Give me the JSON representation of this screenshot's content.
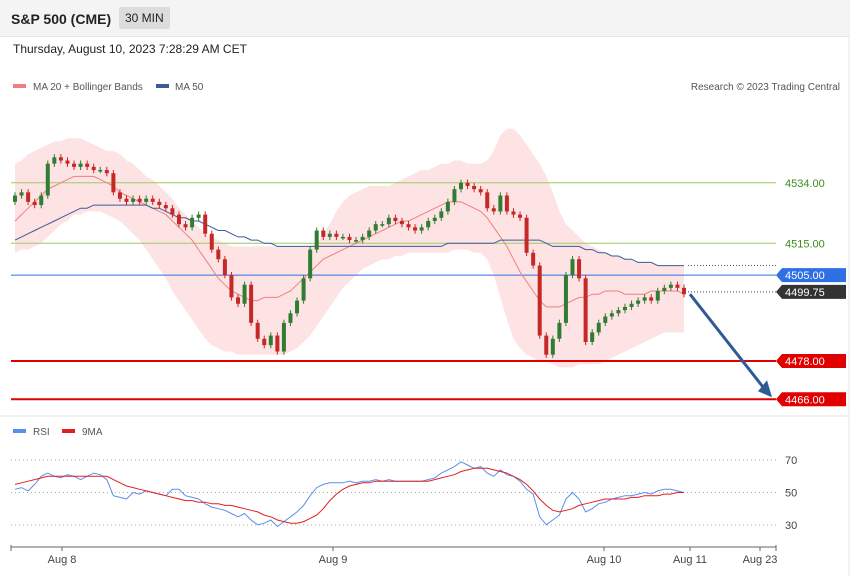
{
  "header": {
    "instrument": "S&P 500 (CME)",
    "timeframe": "30 MIN",
    "datetime": "Thursday, August 10, 2023 7:28:29 AM CET"
  },
  "legend": {
    "ma20_label": "MA 20 + Bollinger Bands",
    "ma50_label": "MA 50",
    "credit": "Research © 2023 Trading Central",
    "rsi_label": "RSI",
    "rsi_ma_label": "9MA"
  },
  "colors": {
    "bull": "#2e7d32",
    "bear": "#c62828",
    "ma20": "#f08080",
    "band": "#fde3e3",
    "ma50": "#3d5a99",
    "resistance_green": "#9ccc65",
    "pivot_blue": "#2f6fe4",
    "support_red": "#e00000",
    "forecast_arrow": "#2e5b94",
    "rsi": "#5b8def",
    "rsi_ma": "#e02020"
  },
  "chart_data": [
    {
      "type": "candlestick",
      "x_axis_labels": [
        "Aug 8",
        "Aug 9",
        "Aug 10",
        "Aug 11",
        "Aug 23"
      ],
      "y_range": [
        4462,
        4560
      ],
      "levels": [
        {
          "label": "4534.00",
          "value": 4534.0,
          "style": "resistance"
        },
        {
          "label": "4515.00",
          "value": 4515.0,
          "style": "resistance"
        },
        {
          "label": "4505.00",
          "value": 4505.0,
          "style": "pivot"
        },
        {
          "label": "4499.75",
          "value": 4499.75,
          "style": "last"
        },
        {
          "label": "4478.00",
          "value": 4478.0,
          "style": "support"
        },
        {
          "label": "4466.00",
          "value": 4466.0,
          "style": "support"
        }
      ],
      "forecast": {
        "from": 4499,
        "to": 4466
      },
      "closes": [
        4530,
        4531,
        4528,
        4527,
        4530,
        4540,
        4542,
        4541,
        4540,
        4539,
        4540,
        4539,
        4538,
        4538,
        4537,
        4531,
        4529,
        4528,
        4529,
        4528,
        4529,
        4528,
        4527,
        4526,
        4524,
        4521,
        4520,
        4523,
        4524,
        4518,
        4513,
        4510,
        4505,
        4498,
        4496,
        4502,
        4490,
        4485,
        4483,
        4486,
        4481,
        4490,
        4493,
        4497,
        4504,
        4513,
        4519,
        4517,
        4518,
        4517,
        4517,
        4516,
        4516,
        4517,
        4519,
        4521,
        4521,
        4523,
        4522,
        4521,
        4520,
        4519,
        4520,
        4522,
        4523,
        4525,
        4528,
        4532,
        4534,
        4533,
        4532,
        4531,
        4526,
        4525,
        4530,
        4525,
        4524,
        4523,
        4512,
        4508,
        4486,
        4480,
        4485,
        4490,
        4505,
        4510,
        4504,
        4484,
        4487,
        4490,
        4492,
        4493,
        4494,
        4495,
        4496,
        4497,
        4498,
        4497,
        4500,
        4501,
        4502,
        4501,
        4499
      ],
      "ma20": [
        4522,
        4524,
        4526,
        4528,
        4530,
        4532,
        4533,
        4534,
        4535,
        4536,
        4536,
        4536,
        4536,
        4535,
        4534,
        4533,
        4531,
        4530,
        4529,
        4528,
        4527,
        4526,
        4525,
        4524,
        4522,
        4520,
        4518,
        4516,
        4513,
        4510,
        4507,
        4504,
        4502,
        4500,
        4499,
        4498,
        4497,
        4497,
        4498,
        4498,
        4498,
        4499,
        4500,
        4502,
        4504,
        4506,
        4508,
        4510,
        4511,
        4512,
        4513,
        4514,
        4515,
        4516,
        4517,
        4518,
        4519,
        4520,
        4521,
        4522,
        4522,
        4523,
        4524,
        4525,
        4526,
        4527,
        4528,
        4528,
        4528,
        4527,
        4526,
        4525,
        4523,
        4520,
        4517,
        4514,
        4510,
        4506,
        4503,
        4500,
        4497,
        4495,
        4495,
        4495,
        4496,
        4497,
        4498,
        4498,
        4499,
        4499,
        4500,
        4500,
        4500,
        4499,
        4499,
        4499,
        4499,
        4500,
        4500,
        4500,
        4500,
        4500,
        4499
      ],
      "ma50": [
        4516,
        4517,
        4518,
        4519,
        4520,
        4521,
        4522,
        4523,
        4524,
        4525,
        4526,
        4526,
        4527,
        4527,
        4527,
        4527,
        4527,
        4527,
        4527,
        4527,
        4527,
        4526,
        4526,
        4525,
        4524,
        4523,
        4523,
        4522,
        4522,
        4521,
        4520,
        4519,
        4519,
        4518,
        4517,
        4517,
        4516,
        4516,
        4515,
        4515,
        4514,
        4514,
        4514,
        4514,
        4514,
        4514,
        4514,
        4514,
        4514,
        4514,
        4514,
        4514,
        4514,
        4514,
        4514,
        4514,
        4514,
        4514,
        4514,
        4514,
        4514,
        4514,
        4514,
        4514,
        4514,
        4514,
        4515,
        4515,
        4515,
        4515,
        4515,
        4515,
        4515,
        4515,
        4516,
        4516,
        4516,
        4516,
        4516,
        4516,
        4516,
        4515,
        4514,
        4514,
        4514,
        4514,
        4514,
        4513,
        4513,
        4512,
        4512,
        4511,
        4511,
        4510,
        4510,
        4509,
        4509,
        4509,
        4508,
        4508,
        4508,
        4508,
        4508
      ],
      "band_upper": [
        4540,
        4541,
        4543,
        4544,
        4545,
        4546,
        4547,
        4547,
        4548,
        4548,
        4548,
        4547,
        4546,
        4545,
        4544,
        4544,
        4543,
        4541,
        4540,
        4538,
        4536,
        4535,
        4533,
        4531,
        4529,
        4526,
        4524,
        4522,
        4520,
        4518,
        4517,
        4516,
        4515,
        4514,
        4514,
        4514,
        4514,
        4514,
        4514,
        4514,
        4514,
        4514,
        4514,
        4514,
        4514,
        4514,
        4515,
        4518,
        4521,
        4525,
        4528,
        4530,
        4531,
        4532,
        4533,
        4533,
        4533,
        4533,
        4534,
        4535,
        4536,
        4537,
        4538,
        4538,
        4539,
        4540,
        4540,
        4541,
        4541,
        4540,
        4540,
        4540,
        4541,
        4544,
        4549,
        4551,
        4551,
        4549,
        4546,
        4543,
        4540,
        4536,
        4531,
        4525,
        4521,
        4519,
        4517,
        4515,
        4514,
        4513,
        4512,
        4511,
        4511,
        4510,
        4510,
        4509,
        4509,
        4509,
        4508,
        4508,
        4508,
        4508,
        4508
      ],
      "band_lower": [
        4512,
        4513,
        4513,
        4514,
        4515,
        4517,
        4519,
        4521,
        4522,
        4524,
        4524,
        4525,
        4525,
        4525,
        4524,
        4523,
        4522,
        4520,
        4518,
        4516,
        4513,
        4510,
        4507,
        4504,
        4500,
        4497,
        4494,
        4491,
        4488,
        4485,
        4483,
        4482,
        4481,
        4481,
        4480,
        4480,
        4480,
        4480,
        4480,
        4480,
        4480,
        4480,
        4481,
        4482,
        4484,
        4486,
        4489,
        4492,
        4495,
        4498,
        4501,
        4503,
        4505,
        4507,
        4508,
        4509,
        4510,
        4510,
        4511,
        4511,
        4512,
        4512,
        4512,
        4512,
        4512,
        4512,
        4512,
        4513,
        4513,
        4513,
        4512,
        4512,
        4510,
        4505,
        4498,
        4491,
        4485,
        4482,
        4480,
        4479,
        4478,
        4478,
        4477,
        4476,
        4476,
        4476,
        4477,
        4477,
        4477,
        4477,
        4478,
        4479,
        4480,
        4481,
        4482,
        4483,
        4484,
        4485,
        4486,
        4487,
        4487,
        4487,
        4487
      ]
    },
    {
      "type": "line",
      "name": "RSI panel",
      "y_ticks": [
        30,
        50,
        70
      ],
      "y_range": [
        20,
        80
      ],
      "rsi": [
        52,
        53,
        51,
        55,
        60,
        62,
        60,
        59,
        61,
        60,
        58,
        60,
        62,
        61,
        58,
        48,
        47,
        46,
        50,
        49,
        51,
        50,
        49,
        48,
        52,
        52,
        48,
        47,
        46,
        43,
        41,
        40,
        39,
        37,
        35,
        37,
        33,
        30,
        31,
        33,
        29,
        32,
        35,
        38,
        42,
        48,
        53,
        55,
        56,
        56,
        56,
        57,
        56,
        57,
        57,
        58,
        57,
        58,
        57,
        57,
        57,
        57,
        57,
        58,
        59,
        62,
        64,
        66,
        69,
        67,
        65,
        66,
        62,
        60,
        64,
        61,
        60,
        57,
        52,
        49,
        35,
        30,
        33,
        36,
        46,
        50,
        46,
        38,
        40,
        43,
        44,
        46,
        47,
        48,
        48,
        49,
        50,
        49,
        51,
        52,
        52,
        51,
        50
      ],
      "rsi_ma": [
        55,
        56,
        57,
        58,
        59,
        60,
        60,
        60,
        60,
        60,
        60,
        60,
        60,
        60,
        60,
        58,
        56,
        54,
        53,
        52,
        51,
        50,
        49,
        48,
        47,
        46,
        45,
        45,
        44,
        44,
        43,
        43,
        42,
        42,
        41,
        40,
        39,
        38,
        36,
        35,
        33,
        32,
        31,
        31,
        32,
        34,
        36,
        40,
        45,
        49,
        52,
        54,
        55,
        56,
        56,
        57,
        57,
        57,
        57,
        57,
        57,
        57,
        57,
        57,
        58,
        59,
        60,
        61,
        63,
        64,
        65,
        65,
        65,
        64,
        63,
        62,
        60,
        58,
        55,
        51,
        46,
        42,
        39,
        38,
        39,
        40,
        42,
        43,
        44,
        45,
        46,
        46,
        46,
        46,
        47,
        47,
        48,
        48,
        48,
        49,
        49,
        50,
        50
      ]
    }
  ]
}
